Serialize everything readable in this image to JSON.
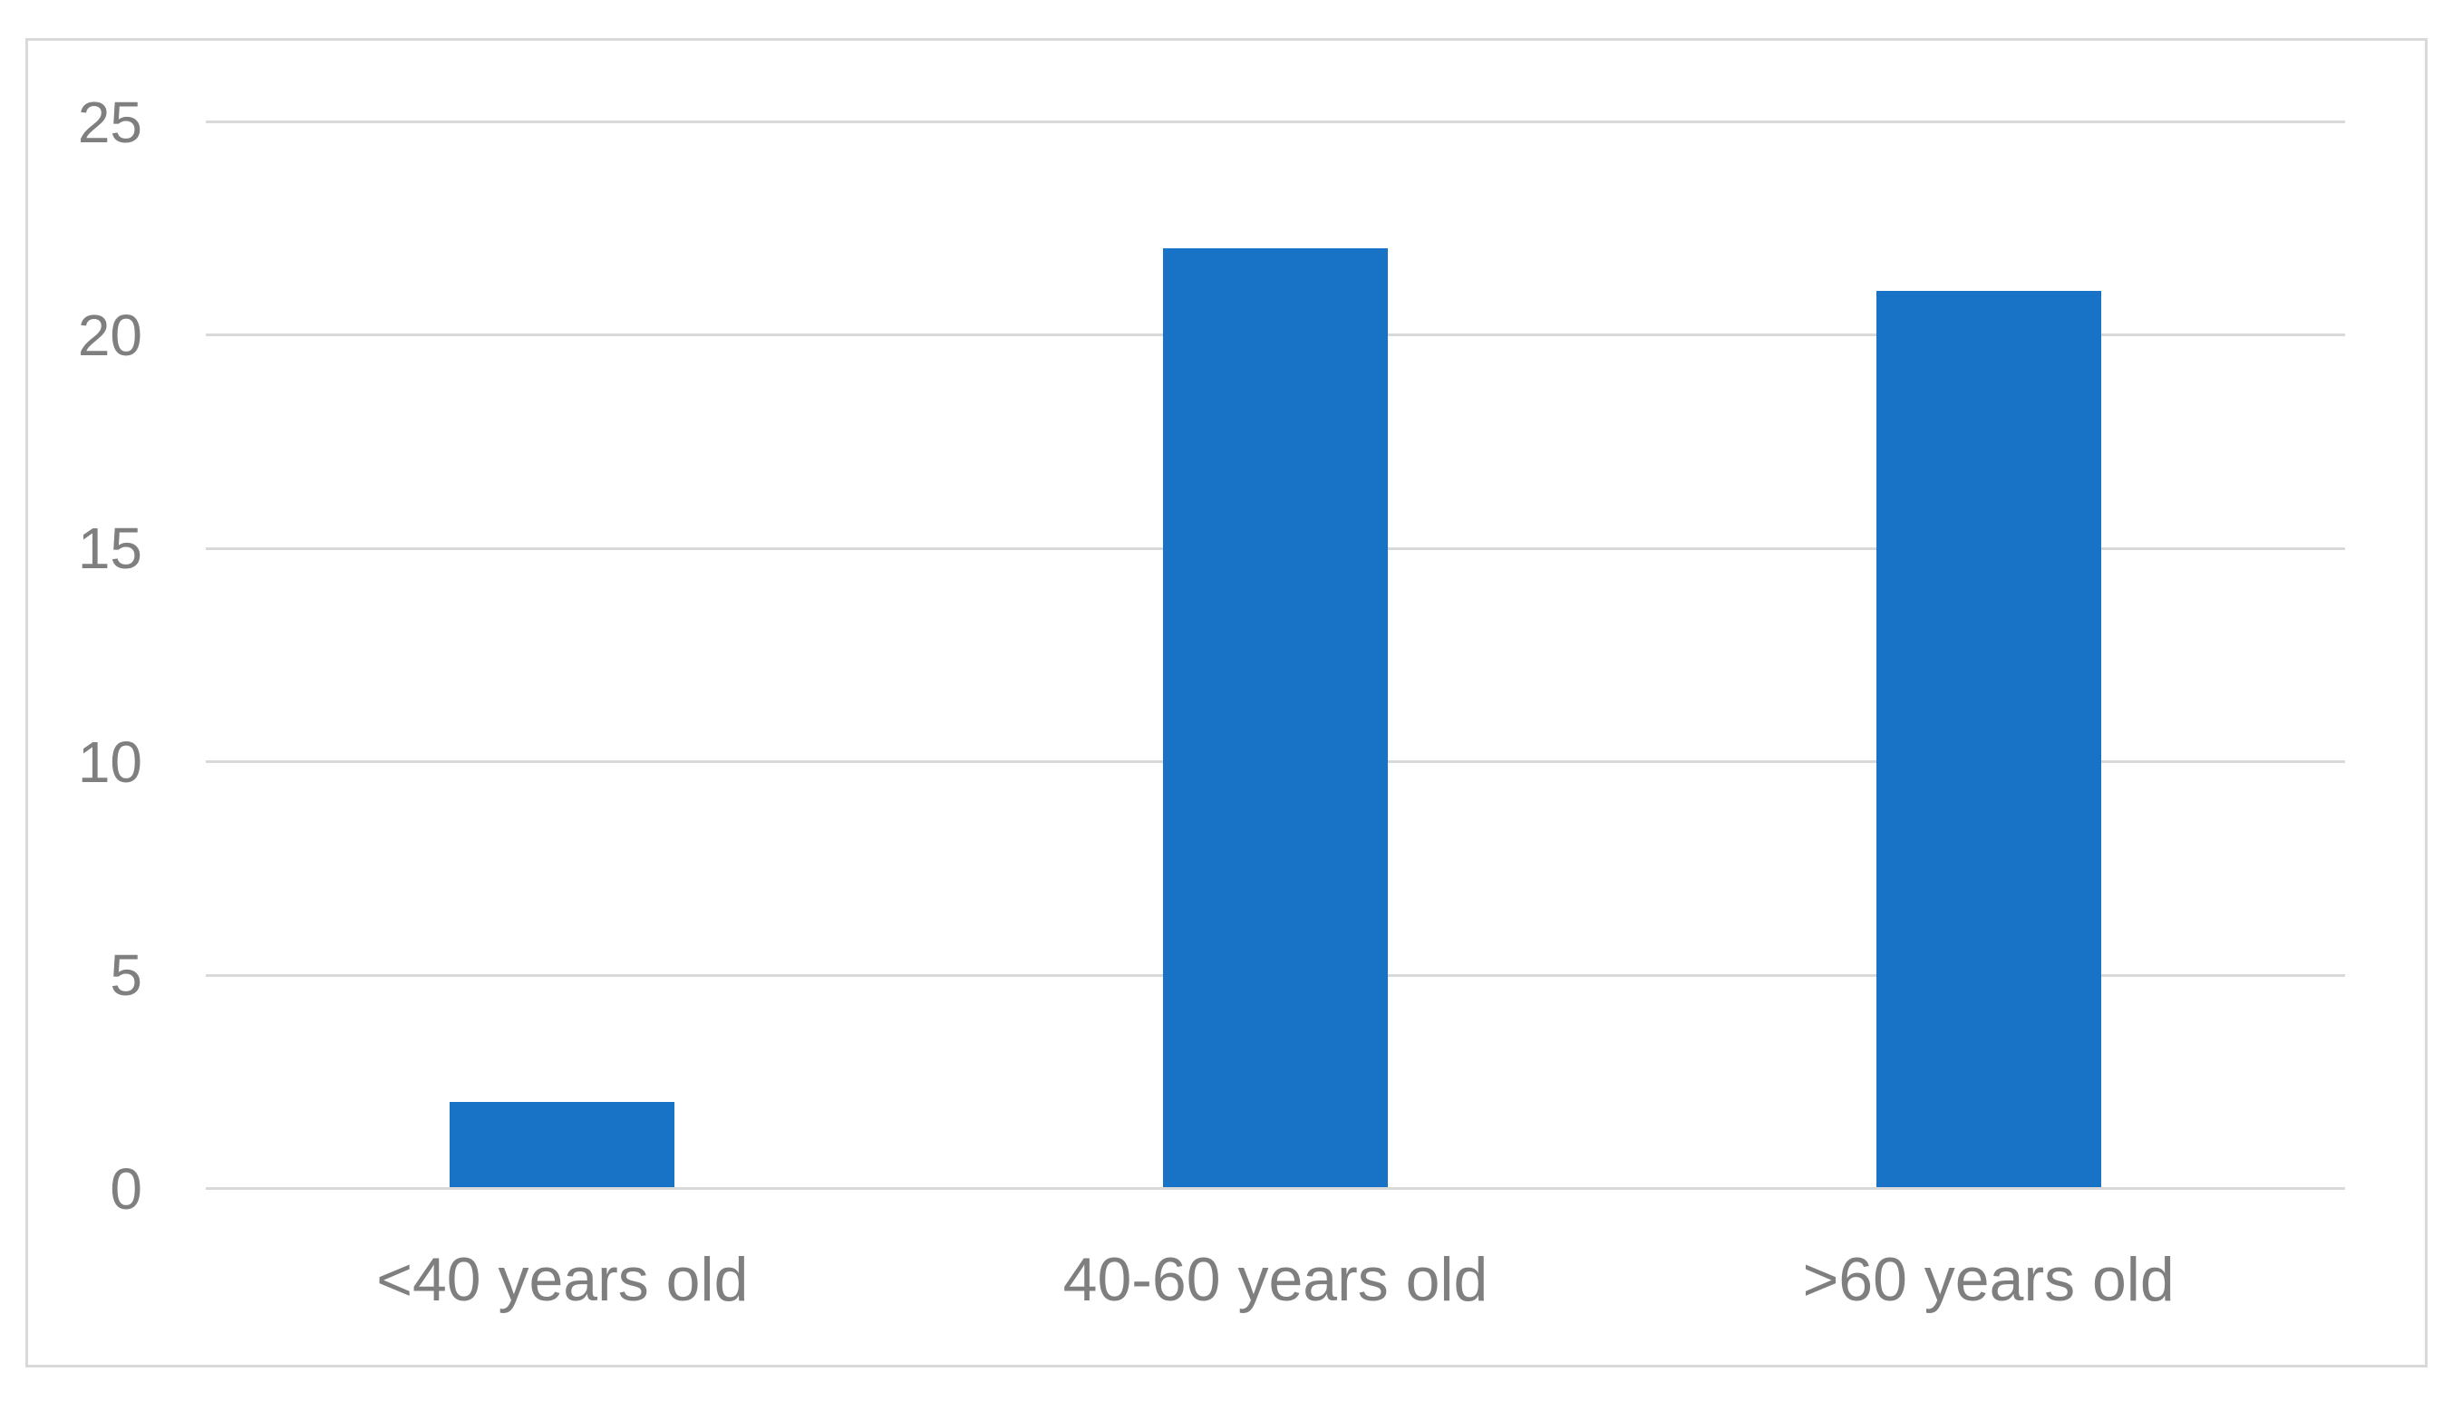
{
  "chart_data": {
    "type": "bar",
    "title": "",
    "categories": [
      "<40 years old",
      "40-60 years old",
      ">60 years old"
    ],
    "values": [
      2,
      22,
      21
    ],
    "yticks": [
      0,
      5,
      10,
      15,
      20,
      25
    ],
    "ylim": [
      0,
      25
    ],
    "xlabel": "",
    "ylabel": "",
    "legend": "none",
    "grid": "horizontal",
    "bar_color": "#1873C7",
    "gridline_color": "#D9D9D9",
    "frame_border_color": "#D9D9D9",
    "label_color": "#7F7F7F",
    "background_color": "#FFFFFF"
  }
}
